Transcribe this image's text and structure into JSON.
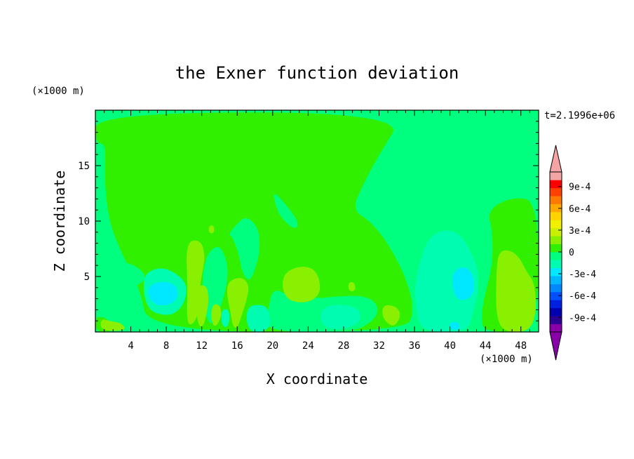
{
  "chart_data": {
    "type": "heatmap",
    "title": "the Exner function deviation",
    "xlabel": "X coordinate",
    "ylabel": "Z coordinate",
    "x_unit": "(×1000 m)",
    "y_unit": "(×1000 m)",
    "time_label": "t=2.1996e+06",
    "xlim": [
      0,
      50
    ],
    "ylim": [
      0,
      20
    ],
    "xticks": [
      4,
      8,
      12,
      16,
      20,
      24,
      28,
      32,
      36,
      40,
      44,
      48
    ],
    "yticks": [
      5,
      10,
      15
    ],
    "xtick_labels": [
      "4",
      "8",
      "12",
      "16",
      "20",
      "24",
      "28",
      "32",
      "36",
      "40",
      "44",
      "48"
    ],
    "ytick_labels": [
      "5",
      "10",
      "15"
    ],
    "colorbar": {
      "vmin": -0.0011,
      "vmax": 0.0011,
      "extend": "both",
      "tick_values": [
        0.0009,
        0.0006,
        0.0003,
        0,
        -0.0003,
        -0.0006,
        -0.0009
      ],
      "tick_labels": [
        "9e-4",
        "6e-4",
        "3e-4",
        "0",
        "-3e-4",
        "-6e-4",
        "-9e-4"
      ],
      "colors": [
        "#8a00a8",
        "#2c0094",
        "#0000b0",
        "#0020e0",
        "#0050ff",
        "#0088ff",
        "#00b8ff",
        "#00e8ff",
        "#00fcb0",
        "#00ff7f",
        "#30f000",
        "#88f000",
        "#c8f000",
        "#f0f000",
        "#ffd200",
        "#ffa800",
        "#ff7800",
        "#ff4000",
        "#ff0000",
        "#f4a4a4"
      ],
      "under_color": "#8a00a8",
      "over_color": "#f4a4a4"
    },
    "background_color": "#00ff7f",
    "regions": [
      {
        "level": 0.00015,
        "color": "#30f000",
        "points": [
          [
            0,
            19.8
          ],
          [
            35,
            19.8
          ],
          [
            32,
            16
          ],
          [
            30,
            13
          ],
          [
            29,
            11
          ],
          [
            31,
            10
          ],
          [
            33,
            8
          ],
          [
            35,
            5
          ],
          [
            36,
            2
          ],
          [
            35,
            0
          ],
          [
            6,
            0
          ],
          [
            5,
            4
          ],
          [
            3,
            7
          ],
          [
            1.5,
            10
          ],
          [
            1,
            14
          ],
          [
            1.2,
            17
          ],
          [
            0,
            17
          ]
        ]
      },
      {
        "level": 0.00015,
        "color": "#30f000",
        "points": [
          [
            44,
            0
          ],
          [
            50,
            0
          ],
          [
            50,
            11.8
          ],
          [
            47,
            12.2
          ],
          [
            44.2,
            11
          ],
          [
            44.8,
            9
          ],
          [
            44.8,
            6
          ],
          [
            43.8,
            3
          ],
          [
            43.5,
            1
          ]
        ]
      },
      {
        "level": 0.00015,
        "color": "#30f000",
        "points": [
          [
            0,
            0
          ],
          [
            2,
            0
          ],
          [
            1.5,
            1.2
          ],
          [
            0,
            1.5
          ]
        ]
      },
      {
        "level": -5e-05,
        "color": "#00ff7f",
        "points": [
          [
            20,
            12.8
          ],
          [
            21.8,
            11.2
          ],
          [
            23,
            9.8
          ],
          [
            22.5,
            9.2
          ],
          [
            21,
            10.2
          ],
          [
            20.3,
            11.4
          ]
        ]
      },
      {
        "level": -5e-05,
        "color": "#00ff7f",
        "points": [
          [
            17,
            10.5
          ],
          [
            18.4,
            9.4
          ],
          [
            18.6,
            7.5
          ],
          [
            18,
            5.5
          ],
          [
            17.3,
            4.5
          ],
          [
            16.5,
            5.5
          ],
          [
            16.2,
            7
          ],
          [
            15.5,
            8.5
          ],
          [
            15,
            8.8
          ],
          [
            15.8,
            9.6
          ]
        ]
      },
      {
        "level": -5e-05,
        "color": "#00ff7f",
        "points": [
          [
            0.5,
            6.5
          ],
          [
            4,
            6.3
          ],
          [
            6,
            5
          ],
          [
            4.5,
            4
          ],
          [
            3,
            4
          ],
          [
            0.5,
            4.2
          ]
        ]
      },
      {
        "level": -5e-05,
        "color": "#00ff7f",
        "points": [
          [
            0.3,
            3
          ],
          [
            1,
            2.5
          ],
          [
            0.8,
            1.2
          ],
          [
            0.2,
            1.5
          ]
        ]
      },
      {
        "level": -5e-05,
        "color": "#00ff7f",
        "points": [
          [
            12.5,
            7
          ],
          [
            14,
            8
          ],
          [
            15,
            6
          ],
          [
            14.8,
            4
          ],
          [
            13.8,
            1.5
          ],
          [
            13,
            0.5
          ],
          [
            12.2,
            2
          ],
          [
            12,
            4.5
          ]
        ]
      },
      {
        "level": -5e-05,
        "color": "#00ff7f",
        "points": [
          [
            20,
            4
          ],
          [
            22,
            3.2
          ],
          [
            23.5,
            3.5
          ],
          [
            25,
            3
          ],
          [
            27,
            3.2
          ],
          [
            30,
            3.3
          ],
          [
            31.5,
            2.8
          ],
          [
            32,
            1.8
          ],
          [
            31,
            0.8
          ],
          [
            29,
            0
          ],
          [
            19,
            0
          ],
          [
            19.5,
            2
          ]
        ]
      },
      {
        "level": 0.00035,
        "color": "#88f000",
        "points": [
          [
            10.2,
            8.2
          ],
          [
            12,
            8.3
          ],
          [
            12.4,
            6.5
          ],
          [
            11.8,
            4.5
          ],
          [
            11.8,
            2
          ],
          [
            11,
            0.6
          ],
          [
            10.3,
            0.8
          ],
          [
            10.4,
            4
          ]
        ]
      },
      {
        "level": 0.00035,
        "color": "#88f000",
        "points": [
          [
            21.5,
            5.5
          ],
          [
            23.5,
            6
          ],
          [
            25,
            5.5
          ],
          [
            25.5,
            3.7
          ],
          [
            24.5,
            2.8
          ],
          [
            23,
            2.6
          ],
          [
            21.5,
            3
          ],
          [
            21,
            4.3
          ]
        ]
      },
      {
        "level": 0.00035,
        "color": "#88f000",
        "points": [
          [
            15,
            4.6
          ],
          [
            16.5,
            5
          ],
          [
            17.4,
            4.2
          ],
          [
            17,
            2.7
          ],
          [
            16.5,
            1.5
          ],
          [
            16,
            0.3
          ],
          [
            15.5,
            0.5
          ],
          [
            15.2,
            2
          ],
          [
            14.8,
            3.5
          ]
        ]
      },
      {
        "level": 0.00035,
        "color": "#88f000",
        "points": [
          [
            11.5,
            4.2
          ],
          [
            12.6,
            4.2
          ],
          [
            12.8,
            2.8
          ],
          [
            12.5,
            1.4
          ],
          [
            12.1,
            0.4
          ],
          [
            11.6,
            0.6
          ],
          [
            11.3,
            2.4
          ]
        ]
      },
      {
        "level": 0.00035,
        "color": "#88f000",
        "points": [
          [
            13.2,
            2.5
          ],
          [
            14,
            2.5
          ],
          [
            14.3,
            1.5
          ],
          [
            13.5,
            0.3
          ],
          [
            13,
            1.2
          ]
        ]
      },
      {
        "level": 0.00035,
        "color": "#88f000",
        "points": [
          [
            45.5,
            7.5
          ],
          [
            47.5,
            7.2
          ],
          [
            48.8,
            5.2
          ],
          [
            49.5,
            4.5
          ],
          [
            49.8,
            2
          ],
          [
            49,
            0
          ],
          [
            46,
            0
          ],
          [
            45.2,
            1.5
          ],
          [
            45.2,
            5
          ]
        ]
      },
      {
        "level": 0.00035,
        "color": "#88f000",
        "points": [
          [
            32.5,
            2.5
          ],
          [
            34,
            2.3
          ],
          [
            34.5,
            1.5
          ],
          [
            33.8,
            0.5
          ],
          [
            33,
            0.7
          ],
          [
            32.3,
            1.5
          ]
        ]
      },
      {
        "level": 0.00035,
        "color": "#88f000",
        "points": [
          [
            0.6,
            1.2
          ],
          [
            1.6,
            1
          ],
          [
            3,
            0.8
          ],
          [
            3.5,
            0.1
          ],
          [
            0.6,
            0.1
          ]
        ]
      },
      {
        "level": 0.00035,
        "color": "#88f000",
        "points": [
          [
            28.6,
            4.5
          ],
          [
            29.2,
            4.5
          ],
          [
            29.4,
            3.8
          ],
          [
            28.8,
            3.6
          ],
          [
            28.5,
            4
          ]
        ]
      },
      {
        "level": 0.00035,
        "color": "#88f000",
        "points": [
          [
            12.8,
            9.6
          ],
          [
            13.4,
            9.6
          ],
          [
            13.4,
            8.9
          ],
          [
            12.8,
            8.9
          ]
        ]
      },
      {
        "level": -0.00015,
        "color": "#00fcb0",
        "points": [
          [
            36.5,
            6
          ],
          [
            37.5,
            8.5
          ],
          [
            39.5,
            9.3
          ],
          [
            41.2,
            8.8
          ],
          [
            42.5,
            7
          ],
          [
            43.2,
            5.5
          ],
          [
            43.2,
            3.5
          ],
          [
            42.5,
            1.5
          ],
          [
            42,
            0
          ],
          [
            36.8,
            0
          ],
          [
            36.2,
            2
          ],
          [
            36,
            4
          ]
        ]
      },
      {
        "level": -0.00015,
        "color": "#00fcb0",
        "points": [
          [
            5.5,
            5.2
          ],
          [
            7,
            5.8
          ],
          [
            8.5,
            5.6
          ],
          [
            10.3,
            4.5
          ],
          [
            10.2,
            2.8
          ],
          [
            9,
            1.6
          ],
          [
            7.5,
            1.5
          ],
          [
            6,
            2
          ],
          [
            5.4,
            3.5
          ]
        ]
      },
      {
        "level": -0.00015,
        "color": "#00fcb0",
        "points": [
          [
            25.7,
            2.3
          ],
          [
            28,
            2.5
          ],
          [
            29.8,
            2.1
          ],
          [
            30,
            0.9
          ],
          [
            28,
            0.2
          ],
          [
            26,
            0.3
          ],
          [
            25.3,
            1.2
          ]
        ]
      },
      {
        "level": -0.00015,
        "color": "#00fcb0",
        "points": [
          [
            17.2,
            2.3
          ],
          [
            18.5,
            2.5
          ],
          [
            19.5,
            2.2
          ],
          [
            19.8,
            0.6
          ],
          [
            19,
            0
          ],
          [
            17.5,
            0
          ],
          [
            17,
            1
          ]
        ]
      },
      {
        "level": -0.00015,
        "color": "#00fcb0",
        "points": [
          [
            14.2,
            2
          ],
          [
            15,
            2.1
          ],
          [
            15.2,
            1.2
          ],
          [
            14.8,
            0.3
          ],
          [
            14.2,
            0.7
          ]
        ]
      },
      {
        "level": -0.00035,
        "color": "#00e8ff",
        "points": [
          [
            40.2,
            5.3
          ],
          [
            41.5,
            6
          ],
          [
            42.6,
            5.3
          ],
          [
            42.8,
            3.6
          ],
          [
            41.8,
            2.8
          ],
          [
            40.7,
            3
          ],
          [
            40.3,
            4
          ]
        ]
      },
      {
        "level": -0.00035,
        "color": "#00e8ff",
        "points": [
          [
            6,
            4.2
          ],
          [
            7.7,
            4.6
          ],
          [
            9.2,
            4.2
          ],
          [
            9.3,
            3
          ],
          [
            8.3,
            2.4
          ],
          [
            6.8,
            2.4
          ],
          [
            6,
            3.1
          ]
        ]
      },
      {
        "level": -0.00035,
        "color": "#00e8ff",
        "points": [
          [
            40,
            0.9
          ],
          [
            41,
            0.9
          ],
          [
            41.1,
            0.2
          ],
          [
            40,
            0.2
          ]
        ]
      }
    ]
  }
}
